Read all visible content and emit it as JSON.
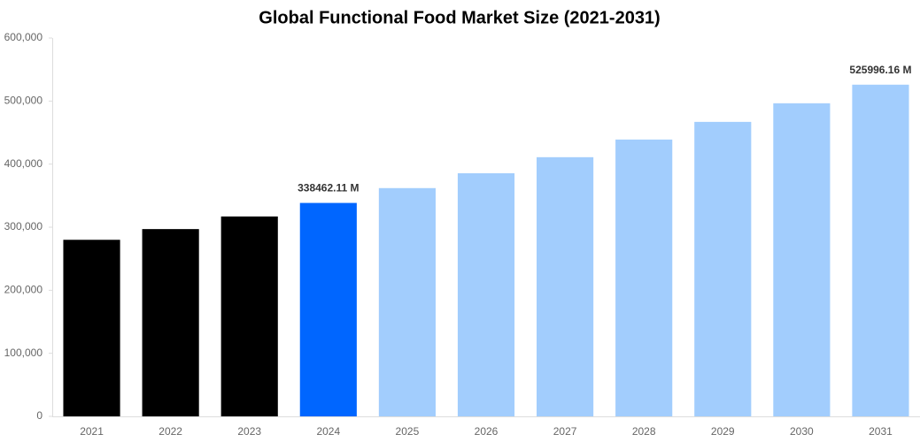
{
  "chart_data": {
    "type": "bar",
    "title": "Global Functional Food Market Size (2021-2031)",
    "categories": [
      "2021",
      "2022",
      "2023",
      "2024",
      "2025",
      "2026",
      "2027",
      "2028",
      "2029",
      "2030",
      "2031"
    ],
    "values": [
      280000,
      297000,
      317000,
      338462.11,
      362000,
      385500,
      411000,
      439000,
      467000,
      496500,
      525996.16
    ],
    "value_labels": [
      null,
      null,
      null,
      "338462.11 M",
      null,
      null,
      null,
      null,
      null,
      null,
      "525996.16 M"
    ],
    "colors": [
      "#000000",
      "#000000",
      "#000000",
      "#0066ff",
      "#a2cdfd",
      "#a2cdfd",
      "#a2cdfd",
      "#a2cdfd",
      "#a2cdfd",
      "#a2cdfd",
      "#a2cdfd"
    ],
    "ylim": [
      0,
      600000
    ],
    "yticks": [
      0,
      {
        "value": 100000,
        "label": "100,000"
      },
      {
        "value": 200000,
        "label": "200,000"
      },
      {
        "value": 300000,
        "label": "300,000"
      },
      {
        "value": 400000,
        "label": "400,000"
      },
      {
        "value": 500000,
        "label": "500,000"
      },
      {
        "value": 600000,
        "label": "600,000"
      }
    ],
    "grid": false
  }
}
